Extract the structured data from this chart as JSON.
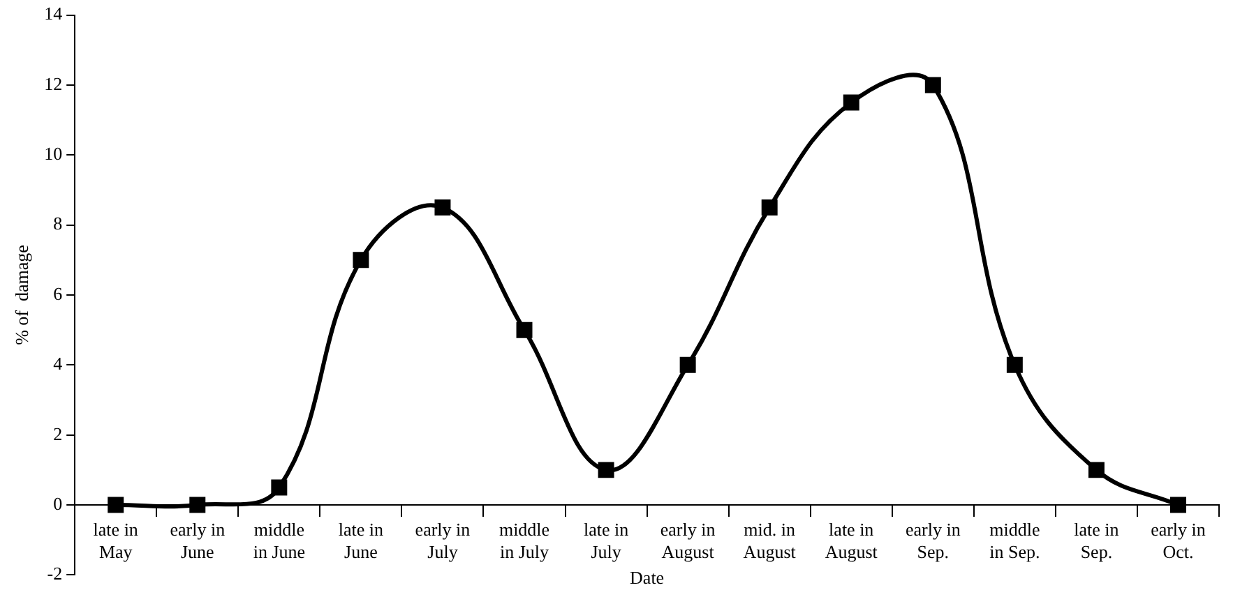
{
  "chart_data": {
    "type": "line",
    "xlabel": "Date",
    "ylabel": "% of  damage",
    "categories": [
      "late in\nMay",
      "early in\nJune",
      "middle\nin June",
      "late in\nJune",
      "early in\nJuly",
      "middle\nin July",
      "late in\nJuly",
      "early in\nAugust",
      "mid. in\nAugust",
      "late in\nAugust",
      "early in\nSep.",
      "middle\nin Sep.",
      "late in\nSep.",
      "early in\nOct."
    ],
    "series": [
      {
        "color": "#000000",
        "values": [
          0,
          0,
          0.5,
          7,
          8.5,
          5,
          1,
          4,
          8.5,
          11.5,
          12,
          4,
          1,
          0
        ]
      }
    ],
    "ylim": [
      -2,
      14
    ],
    "yticks": [
      -2,
      0,
      2,
      4,
      6,
      8,
      10,
      12,
      14
    ],
    "grid": false,
    "legend": false,
    "marker": "square",
    "line_style": "solid"
  }
}
